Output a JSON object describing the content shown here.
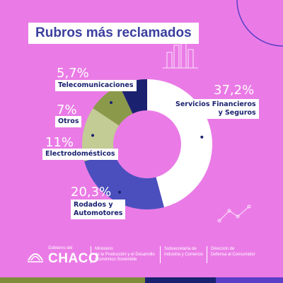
{
  "chart_data": {
    "type": "pie",
    "donut": true,
    "title": "Rubros más reclamados",
    "slices": [
      {
        "label": "Servicios Financieros y Seguros",
        "label_lines": [
          "Servicios Financieros",
          "y Seguros"
        ],
        "value": 37.2,
        "value_text": "37,2%",
        "color": "#ffffff"
      },
      {
        "label": "Rodados y Automotores",
        "label_lines": [
          "Rodados y",
          "Automotores"
        ],
        "value": 20.3,
        "value_text": "20,3%",
        "color": "#4a4fbd"
      },
      {
        "label": "Electrodomésticos",
        "label_lines": [
          "Electrodomésticos"
        ],
        "value": 11,
        "value_text": "11%",
        "color": "#c2cc94"
      },
      {
        "label": "Otros",
        "label_lines": [
          "Otros"
        ],
        "value": 7,
        "value_text": "7%",
        "color": "#8a9a4a"
      },
      {
        "label": "Telecomunicaciones",
        "label_lines": [
          "Telecomunicaciones"
        ],
        "value": 5.7,
        "value_text": "5,7%",
        "color": "#1a2270"
      }
    ],
    "legend": "none"
  },
  "footer": {
    "gov_small": "Gobierno del",
    "gov_big": "CHACO",
    "ministerio": [
      "Ministerio",
      "de la Producción y el Desarrollo",
      "Económico Sostenible"
    ],
    "subsecretaria": [
      "Subsecretaría de",
      "Industria y Comercio"
    ],
    "direccion": [
      "Dirección de",
      "Defensa al Consumidor"
    ]
  },
  "colors": {
    "background": "#ea7be6",
    "accent_dark": "#1a2270",
    "accent_blue": "#4a4fbd",
    "accent_olive": "#8a9a4a",
    "stripe_green": "#7f8c3a",
    "stripe_blue": "#1a2270",
    "stripe_purple": "#5a3fc7"
  }
}
